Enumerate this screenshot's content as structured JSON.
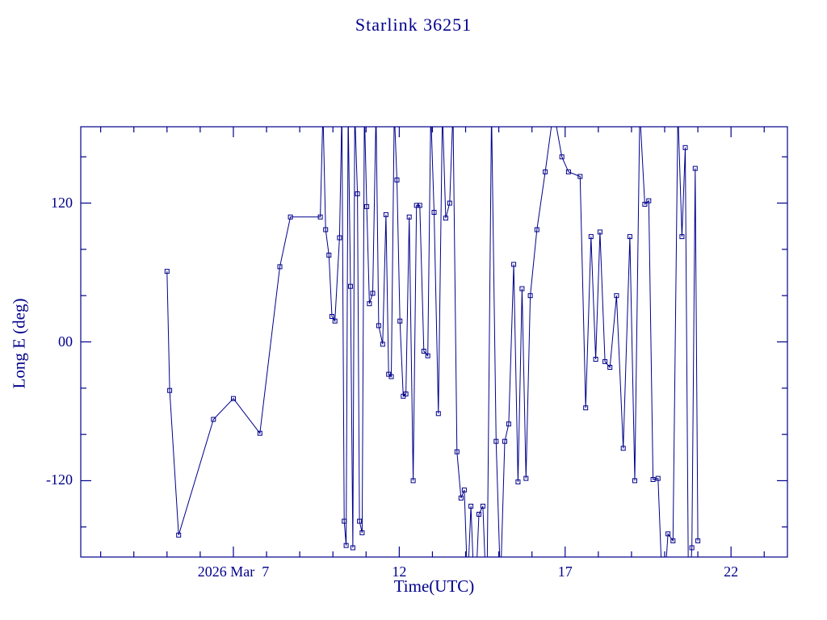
{
  "page": {
    "background_color": "#ffffff",
    "accent_color": "#00008B"
  },
  "chart_data": {
    "type": "line",
    "title": "Starlink 36251",
    "xlabel": "Time(UTC)",
    "ylabel": "Long E (deg)",
    "xlim": [
      2.4,
      23.7
    ],
    "ylim": [
      -186,
      186
    ],
    "grid": false,
    "legend": "none",
    "marker": "open-square",
    "line_color": "#00008B",
    "x_major_ticks": [
      7,
      12,
      17,
      22
    ],
    "x_tick_labels": [
      "2026 Mar  7",
      "12",
      "17",
      "22"
    ],
    "x_minor_step": 1,
    "y_major_ticks": [
      -120,
      0,
      120
    ],
    "y_tick_labels": [
      "-120",
      "00",
      "120"
    ],
    "y_minor_ticks": [
      -160,
      -80,
      -40,
      40,
      80,
      160
    ],
    "points": [
      [
        5.0,
        61
      ],
      [
        5.08,
        -42
      ],
      [
        5.35,
        -167
      ],
      [
        6.4,
        -67
      ],
      [
        7.0,
        -49
      ],
      [
        7.8,
        -79
      ],
      [
        8.4,
        65
      ],
      [
        8.72,
        108
      ],
      [
        9.62,
        108
      ],
      [
        9.7,
        200
      ],
      [
        9.78,
        97
      ],
      [
        9.88,
        75
      ],
      [
        9.97,
        22
      ],
      [
        10.06,
        18
      ],
      [
        10.2,
        90
      ],
      [
        10.27,
        200
      ],
      [
        10.34,
        -155
      ],
      [
        10.4,
        -176
      ],
      [
        10.46,
        200
      ],
      [
        10.53,
        48
      ],
      [
        10.6,
        -178
      ],
      [
        10.66,
        200
      ],
      [
        10.74,
        128
      ],
      [
        10.8,
        -155
      ],
      [
        10.88,
        -165
      ],
      [
        10.95,
        200
      ],
      [
        11.02,
        117
      ],
      [
        11.1,
        33
      ],
      [
        11.2,
        42
      ],
      [
        11.3,
        200
      ],
      [
        11.38,
        14
      ],
      [
        11.5,
        -2
      ],
      [
        11.6,
        110
      ],
      [
        11.68,
        -28
      ],
      [
        11.76,
        -30
      ],
      [
        11.85,
        200
      ],
      [
        11.93,
        140
      ],
      [
        12.02,
        18
      ],
      [
        12.12,
        -47
      ],
      [
        12.2,
        -45
      ],
      [
        12.3,
        108
      ],
      [
        12.42,
        -120
      ],
      [
        12.52,
        118
      ],
      [
        12.62,
        118
      ],
      [
        12.74,
        -8
      ],
      [
        12.86,
        -12
      ],
      [
        12.95,
        200
      ],
      [
        13.05,
        112
      ],
      [
        13.18,
        -62
      ],
      [
        13.3,
        200
      ],
      [
        13.4,
        107
      ],
      [
        13.52,
        120
      ],
      [
        13.62,
        200
      ],
      [
        13.74,
        -95
      ],
      [
        13.86,
        -135
      ],
      [
        13.96,
        -128
      ],
      [
        14.06,
        -210
      ],
      [
        14.16,
        -142
      ],
      [
        14.28,
        -230
      ],
      [
        14.4,
        -149
      ],
      [
        14.52,
        -142
      ],
      [
        14.64,
        -230
      ],
      [
        14.78,
        200
      ],
      [
        14.92,
        -86
      ],
      [
        15.05,
        -210
      ],
      [
        15.18,
        -86
      ],
      [
        15.3,
        -71
      ],
      [
        15.45,
        67
      ],
      [
        15.58,
        -121
      ],
      [
        15.7,
        46
      ],
      [
        15.82,
        -118
      ],
      [
        15.95,
        40
      ],
      [
        16.15,
        97
      ],
      [
        16.4,
        147
      ],
      [
        16.65,
        200
      ],
      [
        16.9,
        160
      ],
      [
        17.1,
        147
      ],
      [
        17.45,
        143
      ],
      [
        17.62,
        -57
      ],
      [
        17.78,
        91
      ],
      [
        17.92,
        -15
      ],
      [
        18.05,
        95
      ],
      [
        18.2,
        -17
      ],
      [
        18.35,
        -22
      ],
      [
        18.55,
        40
      ],
      [
        18.75,
        -92
      ],
      [
        18.95,
        91
      ],
      [
        19.1,
        -120
      ],
      [
        19.25,
        200
      ],
      [
        19.4,
        119
      ],
      [
        19.52,
        122
      ],
      [
        19.65,
        -119
      ],
      [
        19.8,
        -118
      ],
      [
        19.95,
        -230
      ],
      [
        20.1,
        -166
      ],
      [
        20.25,
        -172
      ],
      [
        20.4,
        200
      ],
      [
        20.52,
        91
      ],
      [
        20.62,
        168
      ],
      [
        20.72,
        -230
      ],
      [
        20.82,
        -178
      ],
      [
        20.92,
        150
      ],
      [
        21.0,
        -172
      ]
    ]
  }
}
